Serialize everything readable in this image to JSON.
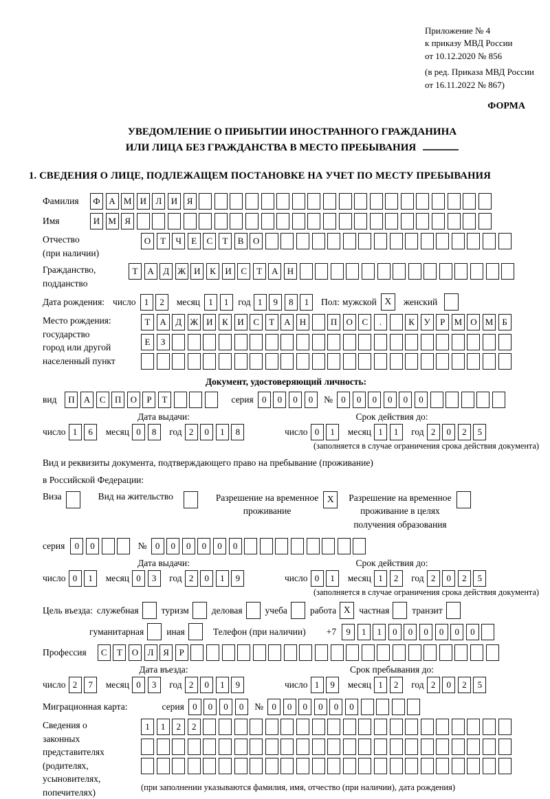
{
  "appendix": {
    "line1": "Приложение № 4",
    "line2": "к приказу МВД России",
    "line3": "от 10.12.2020 № 856",
    "line4": "(в ред. Приказа МВД России",
    "line5": "от 16.11.2022 № 867)"
  },
  "forma_label": "ФОРМА",
  "title": {
    "line1": "УВЕДОМЛЕНИЕ О ПРИБЫТИИ ИНОСТРАННОГО ГРАЖДАНИНА",
    "line2": "ИЛИ ЛИЦА БЕЗ ГРАЖДАНСТВА В МЕСТО ПРЕБЫВАНИЯ"
  },
  "section1_heading": "1. СВЕДЕНИЯ О ЛИЦЕ, ПОДЛЕЖАЩЕМ ПОСТАНОВКЕ НА УЧЕТ ПО МЕСТУ ПРЕБЫВАНИЯ",
  "person": {
    "surname": {
      "label": "Фамилия",
      "boxes": {
        "chars": "ФАМИЛИЯ",
        "count": 26
      }
    },
    "name": {
      "label": "Имя",
      "boxes": {
        "chars": "ИМЯ",
        "count": 26
      }
    },
    "patronymic": {
      "label_line1": "Отчество",
      "label_line2": "(при наличии)",
      "boxes": {
        "chars": "ОТЧЕСТВО",
        "count": 24
      }
    },
    "citizenship": {
      "label_line1": "Гражданство,",
      "label_line2": "подданство",
      "boxes": {
        "chars": "ТАДЖИКИСТАН",
        "count": 25
      }
    },
    "birth_date": {
      "label": "Дата рождения:",
      "day_label": "число",
      "day": {
        "chars": "12"
      },
      "month_label": "месяц",
      "month": {
        "chars": "11"
      },
      "year_label": "год",
      "year": {
        "chars": "1981"
      }
    },
    "gender": {
      "label": "Пол:",
      "male_label": "мужской",
      "male_check": "X",
      "female_label": "женский",
      "female_check": ""
    },
    "birth_place": {
      "label_line1": "Место рождения:",
      "label_line2": "государство",
      "label_line3": "город или другой",
      "label_line4": "населенный пункт",
      "row1": {
        "chars": "ТАДЖИКИСТАН ПОС. КУРМОМБ",
        "count": 24
      },
      "row2": {
        "chars": "ЕЗ",
        "count": 24
      },
      "row3": {
        "chars": "",
        "count": 24
      }
    }
  },
  "identity_doc": {
    "heading": "Документ, удостоверяющий личность:",
    "kind_label": "вид",
    "kind": {
      "chars": "ПАСПОРТ",
      "count": 10
    },
    "series_label": "серия",
    "series": {
      "chars": "0000"
    },
    "number_label": "№",
    "number": {
      "chars": "000000",
      "count": 11
    },
    "issue_heading": "Дата выдачи:",
    "issue": {
      "day_label": "число",
      "day": {
        "chars": "16"
      },
      "month_label": "месяц",
      "month": {
        "chars": "08"
      },
      "year_label": "год",
      "year": {
        "chars": "2018"
      }
    },
    "valid_heading": "Срок действия до:",
    "valid": {
      "day_label": "число",
      "day": {
        "chars": "01"
      },
      "month_label": "месяц",
      "month": {
        "chars": "11"
      },
      "year_label": "год",
      "year": {
        "chars": "2025"
      }
    },
    "footnote": "(заполняется в случае ограничения срока действия документа)"
  },
  "residence_doc": {
    "intro_line1": "Вид и реквизиты документа, подтверждающего право на пребывание (проживание)",
    "intro_line2": "в Российской Федерации:",
    "visa": {
      "label": "Виза",
      "check": ""
    },
    "residence_permit": {
      "label": "Вид на жительство",
      "check": ""
    },
    "temp_permit": {
      "label_line1": "Разрешение на временное",
      "label_line2": "проживание",
      "check": "X"
    },
    "edu_permit": {
      "label_line1": "Разрешение на временное",
      "label_line2": "проживание в целях",
      "label_line3": "получения образования",
      "check": ""
    },
    "series_label": "серия",
    "series": {
      "chars": "00",
      "count": 4
    },
    "number_label": "№",
    "number": {
      "chars": "000000",
      "count": 14
    },
    "issue_heading": "Дата выдачи:",
    "issue": {
      "day_label": "число",
      "day": {
        "chars": "01"
      },
      "month_label": "месяц",
      "month": {
        "chars": "03"
      },
      "year_label": "год",
      "year": {
        "chars": "2019"
      }
    },
    "valid_heading": "Срок действия до:",
    "valid": {
      "day_label": "число",
      "day": {
        "chars": "01"
      },
      "month_label": "месяц",
      "month": {
        "chars": "12"
      },
      "year_label": "год",
      "year": {
        "chars": "2025"
      }
    },
    "footnote": "(заполняется в случае ограничения срока действия документа)"
  },
  "visit_purpose": {
    "label": "Цель въезда:",
    "options": [
      {
        "label": "служебная",
        "check": ""
      },
      {
        "label": "туризм",
        "check": ""
      },
      {
        "label": "деловая",
        "check": ""
      },
      {
        "label": "учеба",
        "check": ""
      },
      {
        "label": "работа",
        "check": "X"
      },
      {
        "label": "частная",
        "check": ""
      },
      {
        "label": "транзит",
        "check": ""
      },
      {
        "label": "гуманитарная",
        "check": ""
      },
      {
        "label": "иная",
        "check": ""
      }
    ],
    "phone_label": "Телефон (при наличии)",
    "phone_prefix": "+7",
    "phone": {
      "chars": "911000000",
      "count": 10
    }
  },
  "profession": {
    "label": "Профессия",
    "boxes": {
      "chars": "СТОЛЯР",
      "count": 26
    }
  },
  "entry": {
    "date_heading": "Дата въезда:",
    "date": {
      "day_label": "число",
      "day": {
        "chars": "27"
      },
      "month_label": "месяц",
      "month": {
        "chars": "03"
      },
      "year_label": "год",
      "year": {
        "chars": "2019"
      }
    },
    "until_heading": "Срок пребывания до:",
    "until": {
      "day_label": "число",
      "day": {
        "chars": "19"
      },
      "month_label": "месяц",
      "month": {
        "chars": "12"
      },
      "year_label": "год",
      "year": {
        "chars": "2025"
      }
    }
  },
  "migration_card": {
    "label": "Миграционная карта:",
    "series_label": "серия",
    "series": {
      "chars": "0000"
    },
    "number_label": "№",
    "number": {
      "chars": "000000",
      "count": 10
    }
  },
  "representatives": {
    "label_line1": "Сведения о",
    "label_line2": "законных",
    "label_line3": "представителях",
    "label_line4": "(родителях,",
    "label_line5": "усыновителях,",
    "label_line6": "попечителях)",
    "row1": {
      "chars": "1122",
      "count": 24
    },
    "row2": {
      "chars": "",
      "count": 24
    },
    "row3": {
      "chars": "",
      "count": 24
    },
    "footnote": "(при заполнении указываются фамилия, имя, отчество (при наличии), дата рождения)"
  }
}
